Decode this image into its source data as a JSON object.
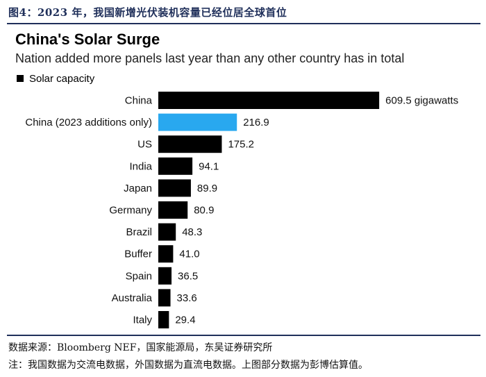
{
  "figure_caption": "图4：2023 年，我国新增光伏装机容量已经位居全球首位",
  "source": "数据来源：Bloomberg NEF，国家能源局，东吴证券研究所",
  "note": "注：我国数据为交流电数据，外国数据为直流电数据。上图部分数据为彭博估算值。",
  "colors": {
    "bar": "#000000",
    "highlight": "#29a8ef",
    "caption": "#1f2f5a"
  },
  "chart_data": {
    "type": "bar",
    "orientation": "horizontal",
    "title": "China's Solar Surge",
    "subtitle": "Nation added more panels last year than any other country has in total",
    "legend": [
      "Solar capacity"
    ],
    "unit_label": "gigawatts",
    "xlim": [
      0,
      700
    ],
    "categories": [
      "China",
      "China (2023 additions only)",
      "US",
      "India",
      "Japan",
      "Germany",
      "Brazil",
      "Buffer",
      "Spain",
      "Australia",
      "Italy"
    ],
    "values": [
      609.5,
      216.9,
      175.2,
      94.1,
      89.9,
      80.9,
      48.3,
      41.0,
      36.5,
      33.6,
      29.4
    ],
    "value_labels": [
      "609.5 gigawatts",
      "216.9",
      "175.2",
      "94.1",
      "89.9",
      "80.9",
      "48.3",
      "41.0",
      "36.5",
      "33.6",
      "29.4"
    ],
    "highlight_index": 1
  }
}
